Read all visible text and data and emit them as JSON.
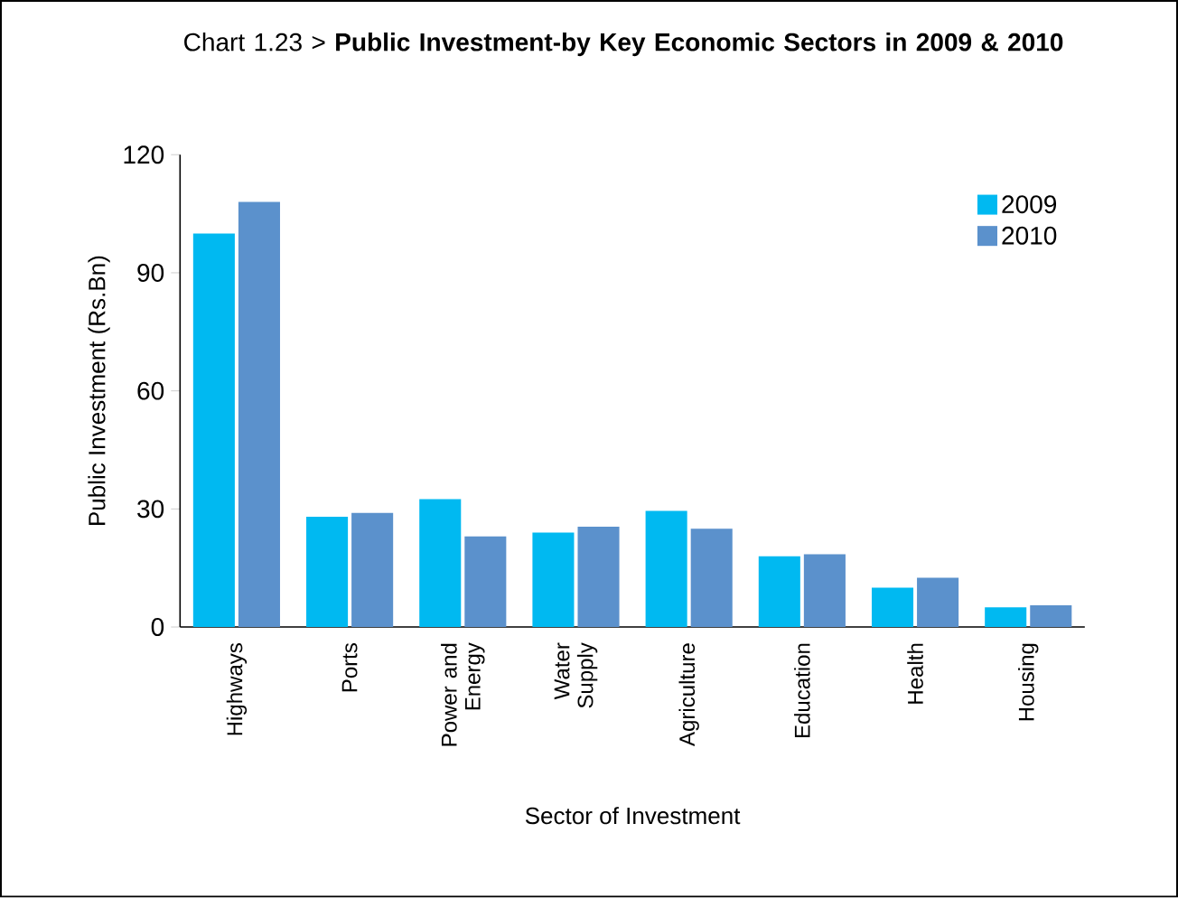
{
  "chart_data": {
    "type": "bar",
    "title": "Chart 1.23 > **Public Investment-by Key Economic Sectors in 2009 & 2010**",
    "xlabel": "Sector of Investment",
    "ylabel": "Public Investment (Rs.Bn)",
    "categories": [
      "Highways",
      "Ports",
      "Power and Energy",
      "Water Supply",
      "Agriculture",
      "Education",
      "Health",
      "Housing"
    ],
    "series": [
      {
        "name": "2009",
        "color": "#00b9f1",
        "values": [
          100,
          28,
          32.5,
          24,
          29.5,
          18,
          10,
          5
        ]
      },
      {
        "name": "2010",
        "color": "#5b91cc",
        "values": [
          108,
          29,
          23,
          25.5,
          25,
          18.5,
          12.5,
          5.5
        ]
      }
    ],
    "ylim": [
      0,
      120
    ],
    "yticks": [
      0,
      30,
      60,
      90,
      120
    ],
    "legend": "top right",
    "grid": false
  }
}
